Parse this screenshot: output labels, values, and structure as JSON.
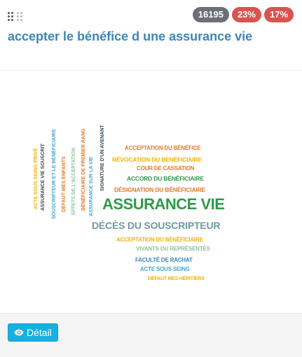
{
  "header": {
    "badges": [
      {
        "label": "16195",
        "color": "#6c6f73"
      },
      {
        "label": "23%",
        "color": "#d9534f"
      },
      {
        "label": "17%",
        "color": "#d9534f"
      }
    ],
    "title": "accepter le bénéfice d une assurance vie"
  },
  "word_cloud": {
    "horizontal_words": [
      "ACCEPTATION DU BÉNÉFICE",
      "RÉVOCATION DU BÉNÉFICIAIRE",
      "COUR DE CASSATION",
      "ACCORD DU BÉNÉFICIAIRE",
      "DÉSIGNATION DU BÉNÉFICIAIRE",
      "ASSURANCE VIE",
      "DÉCÈS DU SOUSCRIPTEUR",
      "ACCEPTATION DU BÉNÉFICIAIRE",
      "VIVANTS OU REPRÉSENTÉS",
      "FACULTÉ DE RACHAT",
      "ACTE SOUS SEING",
      "DÉFAUT MES HÉRITIERS"
    ],
    "vertical_words": [
      "ACTE SOUS SEING PRIVÉ",
      "ASSURANCE VIE SOUSCRIT",
      "SOUSCRIPTEUR ET LE BÉNÉFICIAIRE",
      "DÉFAUT MES ENFANTS",
      "EFFETS DE L'ACCEPTATION",
      "BÉNÉFICIAIRE DE PREMIER RANG",
      "ASSURANCE SUR LA VIE",
      "SIGNATURE D'UN AVENANT"
    ],
    "colors": {
      "orange": "#e07b2a",
      "yellow": "#f2b400",
      "green": "#2e9a4a",
      "teal": "#6a9aa0",
      "dark": "#3d4a56",
      "blue": "#4aa5d0"
    }
  },
  "footer": {
    "detail_button": "Détail"
  },
  "icons": {
    "grip": "grip-dots-icon",
    "eye": "eye-icon"
  }
}
